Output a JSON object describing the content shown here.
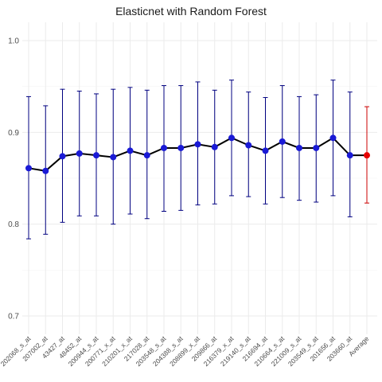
{
  "chart_data": {
    "type": "scatter",
    "title": "Elasticnet with Random Forest",
    "xlabel": "",
    "ylabel": "",
    "ylim": [
      0.68,
      1.02
    ],
    "yticks": [
      0.7,
      0.8,
      0.9,
      1.0
    ],
    "ytick_labels": [
      "0.7",
      "0.8",
      "0.9",
      "1.0"
    ],
    "grid": true,
    "legend": "none",
    "categories": [
      "202068_s_at",
      "207002_at",
      "43427_at",
      "48452_at",
      "200944_s_at",
      "200771_x_at",
      "210201_x_at",
      "217028_at",
      "203548_s_at",
      "204388_s_at",
      "208899_x_at",
      "209866_at",
      "216379_x_at",
      "219140_s_at",
      "216694_at",
      "210664_s_at",
      "221009_s_at",
      "203549_s_at",
      "201656_at",
      "203660_at",
      "Average"
    ],
    "mean": [
      0.861,
      0.858,
      0.874,
      0.877,
      0.875,
      0.873,
      0.88,
      0.875,
      0.883,
      0.883,
      0.887,
      0.884,
      0.894,
      0.886,
      0.88,
      0.89,
      0.883,
      0.883,
      0.894,
      0.875,
      0.875
    ],
    "lower": [
      0.784,
      0.789,
      0.802,
      0.809,
      0.809,
      0.8,
      0.811,
      0.806,
      0.814,
      0.815,
      0.821,
      0.822,
      0.831,
      0.83,
      0.822,
      0.829,
      0.826,
      0.824,
      0.831,
      0.808,
      0.823
    ],
    "upper": [
      0.939,
      0.929,
      0.947,
      0.945,
      0.942,
      0.947,
      0.949,
      0.946,
      0.951,
      0.951,
      0.955,
      0.946,
      0.957,
      0.944,
      0.938,
      0.951,
      0.939,
      0.941,
      0.957,
      0.944,
      0.928
    ],
    "colors": {
      "series": "#1a1ad6",
      "errorbar": "#000080",
      "line": "#000000",
      "average": "#e60000",
      "average_errorbar": "#cc0000",
      "grid_major": "#ebebeb",
      "grid_minor": "#f5f5f5"
    }
  }
}
